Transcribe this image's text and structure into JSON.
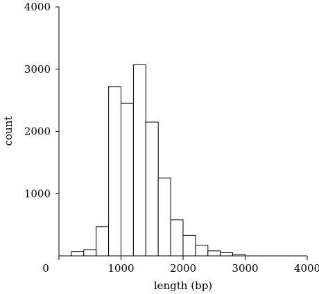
{
  "chart_data": {
    "type": "bar",
    "title": "",
    "xlabel": "length (bp)",
    "ylabel": "count",
    "xlim": [
      0,
      4000
    ],
    "ylim": [
      0,
      4000
    ],
    "xticks": [
      "0",
      "1000",
      "2000",
      "3000",
      "4000"
    ],
    "yticks": [
      "1000",
      "2000",
      "3000",
      "4000"
    ],
    "bin_width": 200,
    "bins": [
      {
        "x0": 200,
        "x1": 400,
        "count": 70
      },
      {
        "x0": 400,
        "x1": 600,
        "count": 100
      },
      {
        "x0": 600,
        "x1": 800,
        "count": 470
      },
      {
        "x0": 800,
        "x1": 1000,
        "count": 2720
      },
      {
        "x0": 1000,
        "x1": 1200,
        "count": 2450
      },
      {
        "x0": 1200,
        "x1": 1400,
        "count": 3070
      },
      {
        "x0": 1400,
        "x1": 1600,
        "count": 2150
      },
      {
        "x0": 1600,
        "x1": 1800,
        "count": 1250
      },
      {
        "x0": 1800,
        "x1": 2000,
        "count": 580
      },
      {
        "x0": 2000,
        "x1": 2200,
        "count": 330
      },
      {
        "x0": 2200,
        "x1": 2400,
        "count": 170
      },
      {
        "x0": 2400,
        "x1": 2600,
        "count": 80
      },
      {
        "x0": 2600,
        "x1": 2800,
        "count": 50
      },
      {
        "x0": 2800,
        "x1": 3000,
        "count": 25
      }
    ],
    "grid": false,
    "fill_color": "#ffffff",
    "stroke_color": "#000000"
  }
}
